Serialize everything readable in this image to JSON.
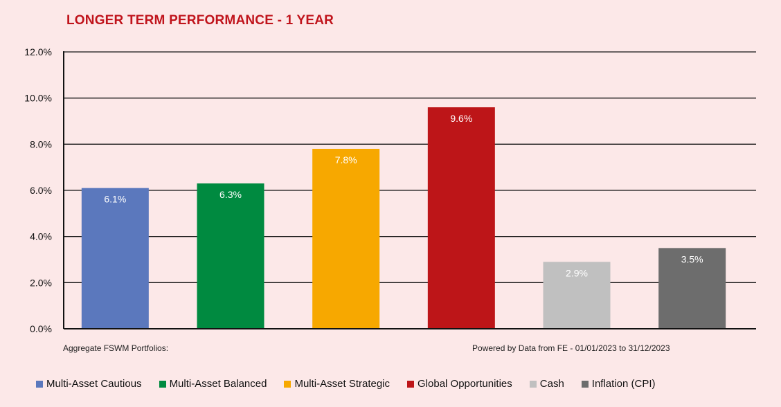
{
  "chart_data": {
    "type": "bar",
    "title": "LONGER TERM PERFORMANCE - 1 YEAR",
    "categories": [
      "Multi-Asset Cautious",
      "Multi-Asset Balanced",
      "Multi-Asset Strategic",
      "Global Opportunities",
      "Cash",
      "Inflation (CPI)"
    ],
    "values": [
      6.1,
      6.3,
      7.8,
      9.6,
      2.9,
      3.5
    ],
    "value_labels": [
      "6.1%",
      "6.3%",
      "7.8%",
      "9.6%",
      "2.9%",
      "3.5%"
    ],
    "colors": [
      "#5b78bd",
      "#008a40",
      "#f7a800",
      "#bd1518",
      "#c0c0c0",
      "#6d6d6d"
    ],
    "ylim": [
      0,
      12
    ],
    "yticks": [
      0,
      2,
      4,
      6,
      8,
      10,
      12
    ],
    "ytick_labels": [
      "0.0%",
      "2.0%",
      "4.0%",
      "6.0%",
      "8.0%",
      "10.0%",
      "12.0%"
    ],
    "grid": true,
    "legend_position": "bottom",
    "xlabel": "",
    "ylabel": ""
  },
  "footnotes": {
    "left": "Aggregate FSWM Portfolios:",
    "right": "Powered by Data from FE - 01/01/2023 to 31/12/2023"
  },
  "colors": {
    "background": "#fce8e8",
    "title": "#c0141c"
  }
}
